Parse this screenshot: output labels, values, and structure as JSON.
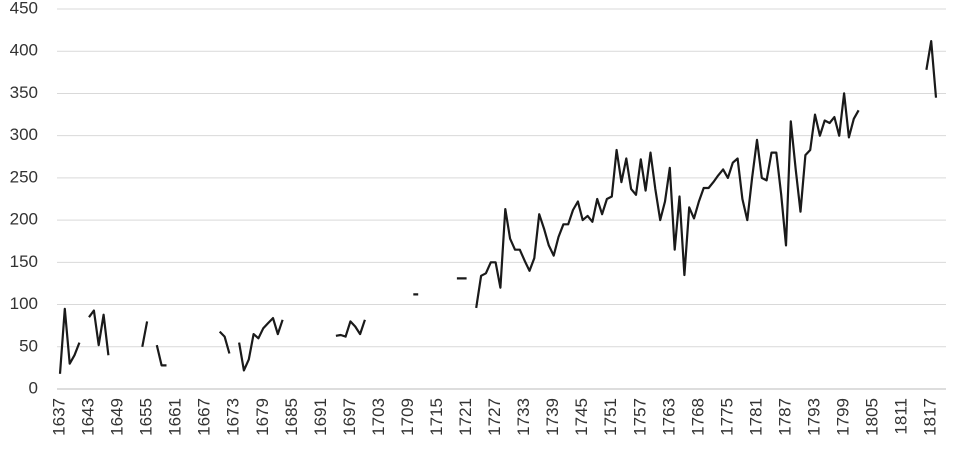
{
  "chart_data": {
    "type": "line",
    "categories": [
      "1637",
      null,
      null,
      null,
      null,
      null,
      "1643",
      null,
      null,
      null,
      null,
      null,
      "1649",
      null,
      null,
      null,
      null,
      null,
      "1655",
      null,
      null,
      null,
      null,
      null,
      "1661",
      null,
      null,
      null,
      null,
      null,
      "1667",
      null,
      null,
      null,
      null,
      null,
      "1673",
      null,
      null,
      null,
      null,
      null,
      "1679",
      null,
      null,
      null,
      null,
      null,
      "1685",
      null,
      null,
      null,
      null,
      null,
      "1691",
      null,
      null,
      null,
      null,
      null,
      "1697",
      null,
      null,
      null,
      null,
      null,
      "1703",
      null,
      null,
      null,
      null,
      null,
      "1709",
      null,
      null,
      null,
      null,
      null,
      "1715",
      null,
      null,
      null,
      null,
      null,
      "1721",
      null,
      null,
      null,
      null,
      null,
      "1727",
      null,
      null,
      null,
      null,
      null,
      "1733",
      null,
      null,
      null,
      null,
      null,
      "1739",
      null,
      null,
      null,
      null,
      null,
      "1745",
      null,
      null,
      null,
      null,
      null,
      "1751",
      null,
      null,
      null,
      null,
      null,
      "1757",
      null,
      null,
      null,
      null,
      null,
      "1763",
      null,
      null,
      null,
      null,
      null,
      "1768",
      null,
      null,
      null,
      null,
      null,
      "1775",
      null,
      null,
      null,
      null,
      null,
      "1781",
      null,
      null,
      null,
      null,
      null,
      "1787",
      null,
      null,
      null,
      null,
      null,
      "1793",
      null,
      null,
      null,
      null,
      null,
      "1799",
      null,
      null,
      null,
      null,
      null,
      "1805",
      null,
      null,
      null,
      null,
      null,
      "1811",
      null,
      null,
      null,
      null,
      null,
      "1817",
      null
    ],
    "values": [
      18,
      95,
      30,
      40,
      55,
      null,
      85,
      93,
      52,
      88,
      40,
      null,
      null,
      null,
      null,
      null,
      null,
      50,
      80,
      null,
      52,
      28,
      28,
      null,
      null,
      null,
      null,
      null,
      null,
      null,
      null,
      null,
      null,
      68,
      62,
      42,
      null,
      55,
      22,
      35,
      65,
      60,
      72,
      78,
      84,
      65,
      82,
      null,
      null,
      null,
      null,
      null,
      null,
      null,
      null,
      null,
      null,
      63,
      64,
      62,
      80,
      74,
      65,
      82,
      null,
      null,
      null,
      null,
      null,
      null,
      null,
      null,
      null,
      112,
      112,
      null,
      null,
      null,
      null,
      null,
      null,
      null,
      131,
      131,
      131,
      null,
      96,
      134,
      137,
      150,
      150,
      120,
      213,
      178,
      165,
      165,
      152,
      140,
      155,
      207,
      190,
      170,
      158,
      180,
      195,
      195,
      212,
      222,
      200,
      205,
      198,
      225,
      207,
      225,
      228,
      283,
      245,
      273,
      237,
      230,
      272,
      235,
      280,
      237,
      200,
      222,
      262,
      165,
      228,
      135,
      215,
      202,
      222,
      238,
      238,
      245,
      253,
      260,
      250,
      268,
      273,
      225,
      200,
      250,
      295,
      250,
      247,
      280,
      280,
      230,
      170,
      317,
      260,
      210,
      277,
      283,
      325,
      300,
      318,
      315,
      322,
      300,
      350,
      298,
      320,
      330,
      null,
      null,
      null,
      null,
      null,
      null,
      null,
      null,
      null,
      null,
      null,
      null,
      null,
      378,
      412,
      345
    ],
    "color": "#1a1a1a",
    "ylim": [
      0,
      450
    ],
    "yticks": [
      0,
      50,
      100,
      150,
      200,
      250,
      300,
      350,
      400,
      450
    ],
    "grid": true
  }
}
